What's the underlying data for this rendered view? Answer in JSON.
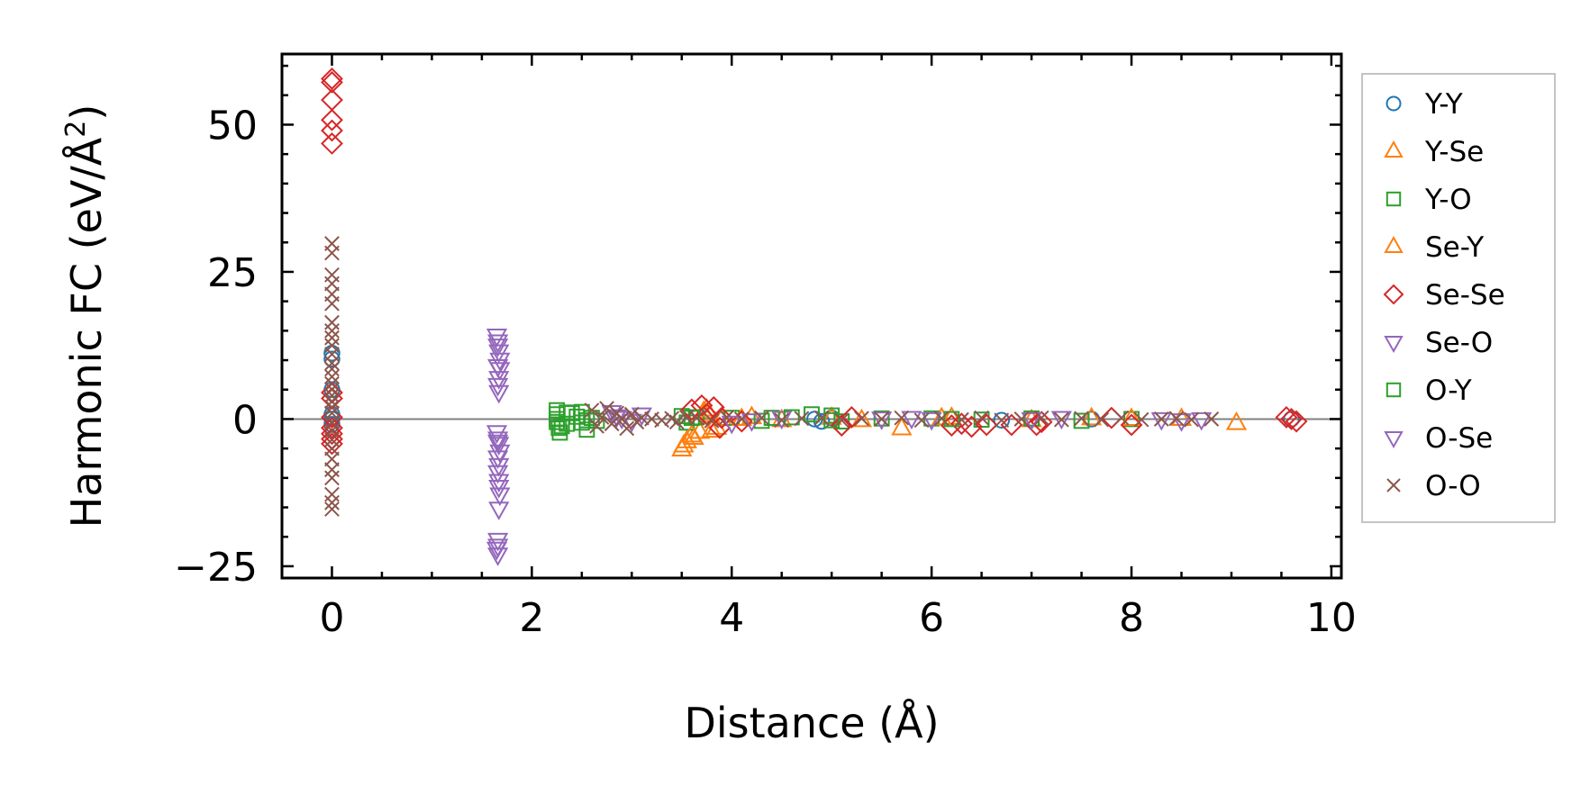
{
  "chart_data": {
    "type": "scatter",
    "xlabel": "Distance (Å)",
    "ylabel_main": "Harmonic FC (eV/Å",
    "ylabel_sup": "2",
    "ylabel_close": ")",
    "xlim": [
      -0.5,
      10.1
    ],
    "ylim": [
      -27,
      62
    ],
    "xticks": [
      0,
      2,
      4,
      6,
      8,
      10
    ],
    "xtick_labels": [
      "0",
      "2",
      "4",
      "6",
      "8",
      "10"
    ],
    "yticks": [
      -25,
      0,
      25,
      50
    ],
    "ytick_labels": [
      "−25",
      "0",
      "25",
      "50"
    ],
    "reference_line_y": 0,
    "grid": false,
    "legend_position": "outside-right",
    "series": [
      {
        "name": "Y-Y",
        "marker": "circle",
        "color": "#1f77b4",
        "points": [
          [
            0,
            11.2
          ],
          [
            0,
            10.2
          ],
          [
            0,
            5
          ],
          [
            0,
            0.8
          ],
          [
            0,
            0
          ],
          [
            0,
            -0.9
          ],
          [
            4.83,
            0
          ],
          [
            4.9,
            -0.4
          ],
          [
            5.0,
            0.2
          ],
          [
            6.7,
            -0.2
          ],
          [
            7.6,
            0
          ],
          [
            9.6,
            0
          ]
        ]
      },
      {
        "name": "Y-Se",
        "marker": "triangle-up",
        "color": "#ff7f0e",
        "points": [
          [
            3.5,
            -5.2
          ],
          [
            3.55,
            -3.8
          ],
          [
            3.62,
            -3.2
          ],
          [
            3.68,
            -2.2
          ],
          [
            3.72,
            1.2
          ],
          [
            3.78,
            0.6
          ],
          [
            3.85,
            -1.5
          ],
          [
            3.9,
            0
          ],
          [
            4.2,
            0.3
          ],
          [
            4.5,
            -0.2
          ],
          [
            5.0,
            0.2
          ],
          [
            5.7,
            -1.6
          ],
          [
            6.2,
            0.2
          ],
          [
            7.0,
            -0.2
          ],
          [
            7.6,
            0.1
          ],
          [
            8.5,
            0
          ],
          [
            9.05,
            -0.7
          ]
        ]
      },
      {
        "name": "Y-O",
        "marker": "square",
        "color": "#2ca02c",
        "points": [
          [
            2.25,
            1.5
          ],
          [
            2.25,
            0.8
          ],
          [
            2.25,
            0
          ],
          [
            2.25,
            -0.5
          ],
          [
            2.27,
            -1.5
          ],
          [
            2.28,
            -2.3
          ],
          [
            2.35,
            1.1
          ],
          [
            2.35,
            -0.8
          ],
          [
            2.45,
            0.4
          ],
          [
            2.5,
            -0.6
          ],
          [
            2.5,
            1.2
          ],
          [
            2.55,
            -1.8
          ],
          [
            2.6,
            0.2
          ],
          [
            2.65,
            -0.3
          ],
          [
            3.5,
            0.5
          ],
          [
            3.55,
            -0.6
          ],
          [
            3.65,
            0.3
          ],
          [
            4.0,
            0.2
          ],
          [
            4.3,
            -0.3
          ],
          [
            4.4,
            0.2
          ],
          [
            4.8,
            0.8
          ],
          [
            5.0,
            0.6
          ],
          [
            5.1,
            -0.4
          ],
          [
            5.5,
            0.1
          ],
          [
            6.0,
            0.1
          ],
          [
            6.5,
            -0.1
          ],
          [
            7.0,
            0.1
          ],
          [
            7.5,
            -0.3
          ],
          [
            8.0,
            0
          ]
        ]
      },
      {
        "name": "Se-Y",
        "marker": "triangle-up",
        "color": "#ff7f0e",
        "points": [
          [
            3.52,
            -4.5
          ],
          [
            3.6,
            -2.8
          ],
          [
            3.75,
            1.6
          ],
          [
            3.8,
            -2.0
          ],
          [
            4.1,
            0
          ],
          [
            5.3,
            -0.2
          ],
          [
            6.1,
            0.1
          ],
          [
            8.0,
            0
          ]
        ]
      },
      {
        "name": "Se-Se",
        "marker": "diamond",
        "color": "#d62728",
        "points": [
          [
            0,
            57.8
          ],
          [
            0,
            57.2
          ],
          [
            0,
            54.2
          ],
          [
            0,
            50.8
          ],
          [
            0,
            49.0
          ],
          [
            0,
            46.8
          ],
          [
            0,
            4.5
          ],
          [
            0,
            3.5
          ],
          [
            0,
            0.3
          ],
          [
            0,
            -1.5
          ],
          [
            0,
            -2.5
          ],
          [
            0,
            -3.4
          ],
          [
            0,
            -4.2
          ],
          [
            3.6,
            1.6
          ],
          [
            3.7,
            2.3
          ],
          [
            3.75,
            0.8
          ],
          [
            3.82,
            2.0
          ],
          [
            3.88,
            -1.5
          ],
          [
            3.9,
            0.2
          ],
          [
            4.1,
            -0.4
          ],
          [
            5.1,
            -1.1
          ],
          [
            5.2,
            0.3
          ],
          [
            6.2,
            -1.1
          ],
          [
            6.3,
            -0.8
          ],
          [
            6.4,
            -1.3
          ],
          [
            6.55,
            -1.0
          ],
          [
            6.8,
            -1.0
          ],
          [
            7.05,
            -1.0
          ],
          [
            7.1,
            -0.5
          ],
          [
            7.8,
            0.2
          ],
          [
            8.0,
            -1.0
          ],
          [
            9.55,
            0.3
          ],
          [
            9.6,
            0
          ],
          [
            9.65,
            -0.4
          ]
        ]
      },
      {
        "name": "Se-O",
        "marker": "triangle-down",
        "color": "#9467bd",
        "points": [
          [
            1.65,
            14.2
          ],
          [
            1.66,
            13.2
          ],
          [
            1.67,
            11.5
          ],
          [
            1.68,
            10.1
          ],
          [
            1.66,
            9.0
          ],
          [
            1.67,
            7.0
          ],
          [
            1.66,
            5.8
          ],
          [
            1.67,
            4.6
          ],
          [
            1.65,
            -2.2
          ],
          [
            1.66,
            -3.3
          ],
          [
            1.67,
            -4.2
          ],
          [
            1.68,
            -5.5
          ],
          [
            1.66,
            -6.5
          ],
          [
            1.67,
            -7.8
          ],
          [
            1.66,
            -9.0
          ],
          [
            1.67,
            -10.5
          ],
          [
            1.68,
            -12.8
          ],
          [
            1.67,
            -15.2
          ],
          [
            1.66,
            -20.5
          ],
          [
            1.65,
            -22.0
          ],
          [
            1.66,
            -23.0
          ],
          [
            2.8,
            1.2
          ],
          [
            2.9,
            0.2
          ],
          [
            3.0,
            -0.3
          ],
          [
            3.1,
            0.8
          ],
          [
            4.0,
            -0.6
          ],
          [
            4.5,
            0.2
          ],
          [
            5.5,
            0.1
          ],
          [
            6.0,
            0
          ],
          [
            7.3,
            0.2
          ],
          [
            8.3,
            0
          ],
          [
            8.5,
            -0.2
          ],
          [
            8.7,
            0
          ]
        ]
      },
      {
        "name": "O-Y",
        "marker": "square",
        "color": "#2ca02c",
        "points": [
          [
            2.3,
            -1.2
          ],
          [
            2.4,
            1.0
          ],
          [
            2.55,
            -0.2
          ],
          [
            3.6,
            0.2
          ],
          [
            4.6,
            0.3
          ],
          [
            5.0,
            -0.2
          ],
          [
            6.2,
            0
          ]
        ]
      },
      {
        "name": "O-Se",
        "marker": "triangle-down",
        "color": "#9467bd",
        "points": [
          [
            1.66,
            12.5
          ],
          [
            1.68,
            8.5
          ],
          [
            1.66,
            -3.8
          ],
          [
            1.67,
            -11.5
          ],
          [
            1.66,
            -21.5
          ],
          [
            2.85,
            0.5
          ],
          [
            4.2,
            -0.2
          ],
          [
            5.8,
            0.2
          ],
          [
            7.0,
            0
          ]
        ]
      },
      {
        "name": "O-O",
        "marker": "x",
        "color": "#8c564b",
        "points": [
          [
            0,
            29.8
          ],
          [
            0,
            28.2
          ],
          [
            0,
            24.5
          ],
          [
            0,
            23.0
          ],
          [
            0,
            21.2
          ],
          [
            0,
            19.6
          ],
          [
            0,
            16.4
          ],
          [
            0,
            15.0
          ],
          [
            0,
            13.8
          ],
          [
            0,
            12.5
          ],
          [
            0,
            11.0
          ],
          [
            0,
            9.5
          ],
          [
            0,
            8.5
          ],
          [
            0,
            7.2
          ],
          [
            0,
            6.0
          ],
          [
            0,
            5.0
          ],
          [
            0,
            4.0
          ],
          [
            0,
            3.0
          ],
          [
            0,
            2.0
          ],
          [
            0,
            1.0
          ],
          [
            0,
            -0.5
          ],
          [
            0,
            -2.0
          ],
          [
            0,
            -3.5
          ],
          [
            0,
            -5.0
          ],
          [
            0,
            -6.8
          ],
          [
            0,
            -8.6
          ],
          [
            0,
            -10.0
          ],
          [
            0,
            -12.8
          ],
          [
            0,
            -14.2
          ],
          [
            0,
            -15.3
          ],
          [
            2.6,
            1.5
          ],
          [
            2.65,
            -1.2
          ],
          [
            2.7,
            0.3
          ],
          [
            2.75,
            1.8
          ],
          [
            2.8,
            -0.8
          ],
          [
            2.85,
            1.0
          ],
          [
            2.9,
            0
          ],
          [
            2.95,
            -1.6
          ],
          [
            3.0,
            0.8
          ],
          [
            3.05,
            -0.5
          ],
          [
            3.1,
            0.2
          ],
          [
            3.2,
            0
          ],
          [
            3.3,
            -0.2
          ],
          [
            3.4,
            0.1
          ],
          [
            3.45,
            -0.5
          ],
          [
            3.55,
            0.3
          ],
          [
            3.65,
            0.2
          ],
          [
            3.8,
            -0.3
          ],
          [
            3.95,
            0.3
          ],
          [
            4.1,
            0
          ],
          [
            4.3,
            0.2
          ],
          [
            4.5,
            -0.2
          ],
          [
            4.7,
            0.1
          ],
          [
            4.9,
            0.2
          ],
          [
            5.1,
            -0.2
          ],
          [
            5.3,
            0.1
          ],
          [
            5.5,
            0
          ],
          [
            5.7,
            0.2
          ],
          [
            5.9,
            -0.2
          ],
          [
            6.1,
            0.1
          ],
          [
            6.3,
            -0.1
          ],
          [
            6.5,
            0.2
          ],
          [
            6.7,
            -0.2
          ],
          [
            6.9,
            0
          ],
          [
            7.1,
            0.2
          ],
          [
            7.3,
            -0.1
          ],
          [
            7.5,
            0.1
          ],
          [
            7.7,
            -0.1
          ],
          [
            7.9,
            0.2
          ],
          [
            8.1,
            -0.1
          ],
          [
            8.3,
            0
          ],
          [
            8.45,
            0.1
          ],
          [
            8.6,
            -0.1
          ],
          [
            8.8,
            0
          ]
        ]
      }
    ]
  }
}
